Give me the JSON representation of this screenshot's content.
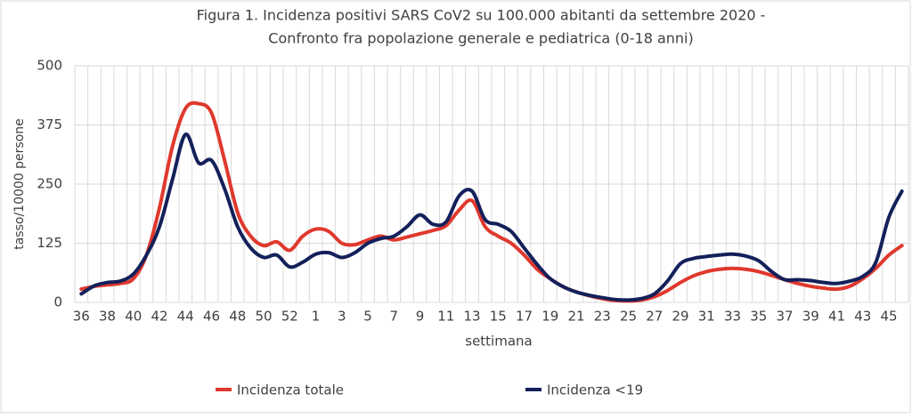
{
  "chart_data": {
    "type": "line",
    "title": [
      "Figura 1. Incidenza positivi SARS CoV2 su 100.000 abitanti da settembre 2020 -",
      "Confronto fra popolazione generale e pediatrica (0-18 anni)"
    ],
    "x_label": "settimana",
    "y_label": "tasso/10000 persone",
    "categories": [
      "36",
      null,
      "38",
      null,
      "40",
      null,
      "42",
      null,
      "44",
      null,
      "46",
      null,
      "48",
      null,
      "50",
      null,
      "52",
      null,
      "1",
      null,
      "3",
      null,
      "5",
      null,
      "7",
      null,
      "9",
      null,
      "11",
      null,
      "13",
      null,
      "15",
      null,
      "17",
      null,
      "19",
      null,
      "21",
      null,
      "23",
      null,
      "25",
      null,
      "27",
      null,
      "29",
      null,
      "31",
      null,
      "33",
      null,
      "35",
      null,
      "37",
      null,
      "39",
      null,
      "41",
      null,
      "43",
      null,
      "45",
      null
    ],
    "series": [
      {
        "name": "Incidenza totale",
        "color": "#e0382d",
        "values": [
          28,
          34,
          37,
          40,
          50,
          100,
          200,
          330,
          410,
          420,
          400,
          300,
          190,
          140,
          120,
          128,
          110,
          140,
          155,
          150,
          125,
          122,
          132,
          140,
          132,
          138,
          145,
          152,
          162,
          195,
          215,
          160,
          140,
          125,
          100,
          70,
          50,
          33,
          22,
          14,
          8,
          4,
          3,
          5,
          12,
          25,
          42,
          56,
          65,
          70,
          72,
          70,
          65,
          57,
          48,
          40,
          34,
          30,
          28,
          34,
          50,
          72,
          100,
          120
        ]
      },
      {
        "name": "Incidenza <19",
        "color": "#13205a",
        "values": [
          18,
          35,
          42,
          45,
          60,
          100,
          160,
          260,
          355,
          295,
          300,
          240,
          160,
          115,
          95,
          100,
          75,
          85,
          102,
          105,
          95,
          105,
          125,
          135,
          140,
          160,
          185,
          165,
          170,
          225,
          235,
          175,
          165,
          150,
          115,
          80,
          50,
          33,
          22,
          15,
          10,
          6,
          5,
          8,
          18,
          45,
          82,
          93,
          97,
          100,
          102,
          98,
          88,
          65,
          48,
          48,
          46,
          42,
          40,
          45,
          55,
          85,
          180,
          235
        ]
      }
    ],
    "ylim": [
      0,
      500
    ],
    "yticks": [
      0,
      125,
      250,
      375,
      500
    ],
    "grid": true,
    "legend": "bottom"
  }
}
